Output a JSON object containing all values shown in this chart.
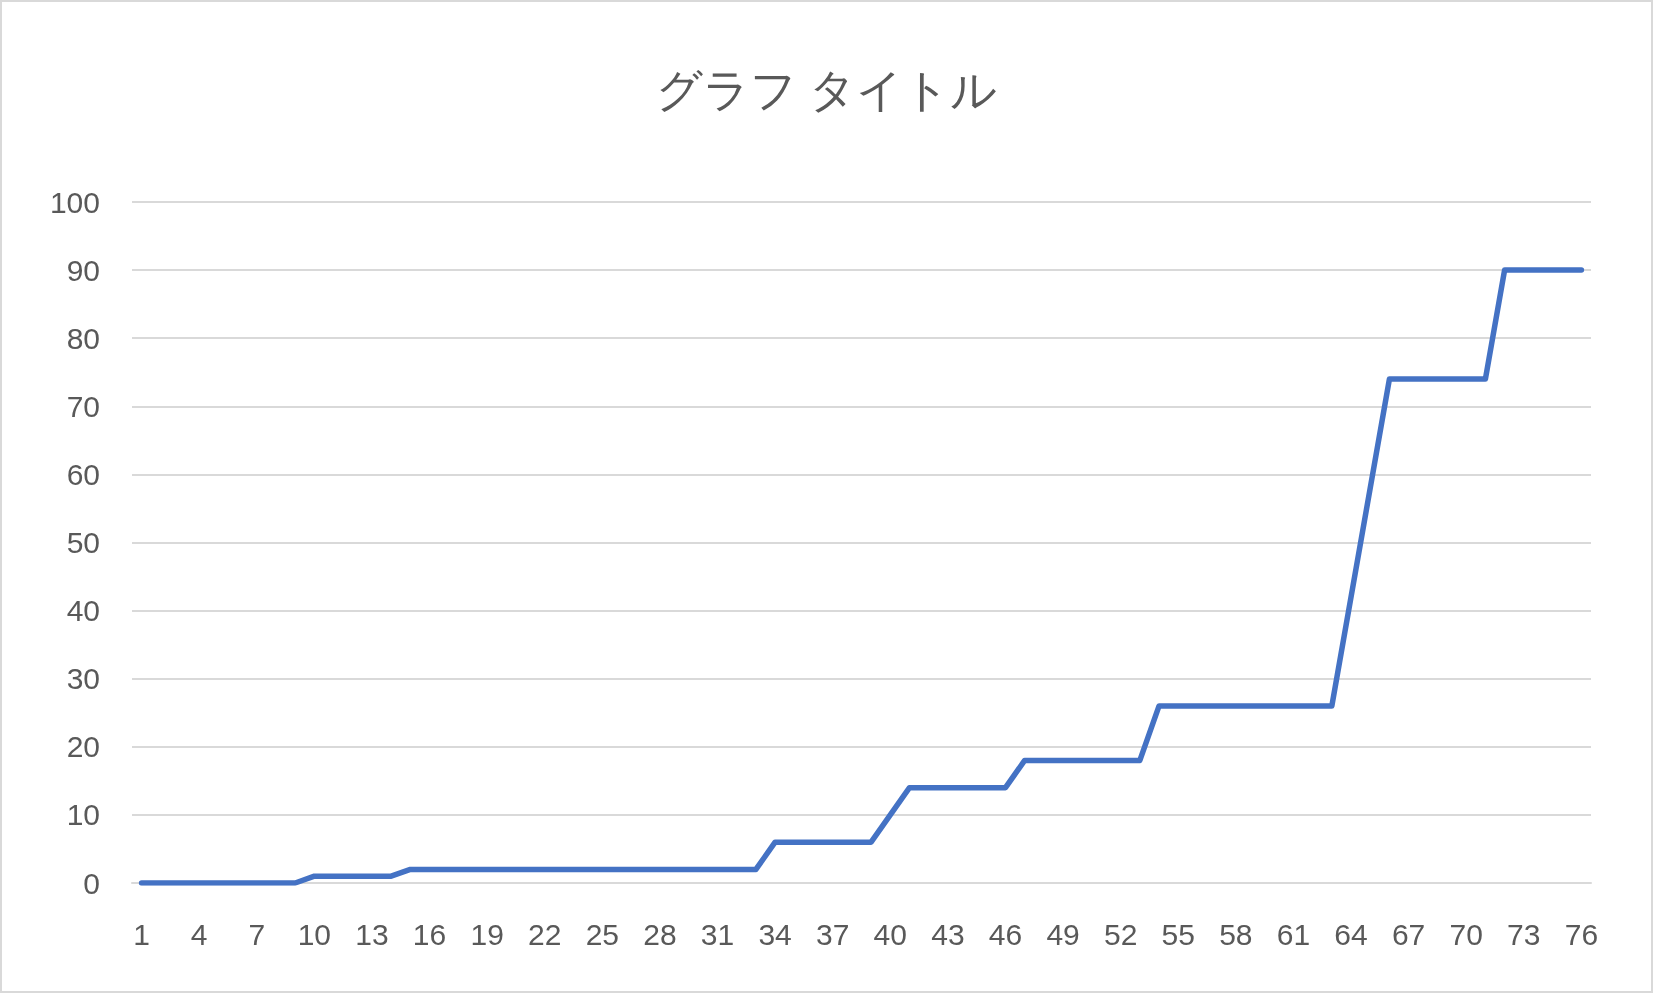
{
  "chart_data": {
    "type": "line",
    "title": "グラフ タイトル",
    "categories": [
      "1",
      null,
      null,
      "4",
      null,
      null,
      "7",
      null,
      null,
      "10",
      null,
      null,
      "13",
      null,
      null,
      "16",
      null,
      null,
      "19",
      null,
      null,
      "22",
      null,
      null,
      "25",
      null,
      null,
      "28",
      null,
      null,
      "31",
      null,
      null,
      "34",
      null,
      null,
      "37",
      null,
      null,
      "40",
      null,
      null,
      "43",
      null,
      null,
      "46",
      null,
      null,
      "49",
      null,
      null,
      "52",
      null,
      null,
      "55",
      null,
      null,
      "58",
      null,
      null,
      "61",
      null,
      null,
      "64",
      null,
      null,
      "67",
      null,
      null,
      "70",
      null,
      null,
      "73",
      null,
      null,
      "76"
    ],
    "series": [
      {
        "color": "#4472c4",
        "values": [
          0,
          0,
          0,
          0,
          0,
          0,
          0,
          0,
          0,
          1,
          1,
          1,
          1,
          1,
          2,
          2,
          2,
          2,
          2,
          2,
          2,
          2,
          2,
          2,
          2,
          2,
          2,
          2,
          2,
          2,
          2,
          2,
          2,
          6,
          6,
          6,
          6,
          6,
          6,
          10,
          14,
          14,
          14,
          14,
          14,
          14,
          18,
          18,
          18,
          18,
          18,
          18,
          18,
          26,
          26,
          26,
          26,
          26,
          26,
          26,
          26,
          26,
          26,
          42,
          58,
          74,
          74,
          74,
          74,
          74,
          74,
          90,
          90,
          90,
          90,
          90
        ]
      }
    ],
    "ylim": [
      0,
      100
    ],
    "yticks": [
      0,
      10,
      20,
      30,
      40,
      50,
      60,
      70,
      80,
      90,
      100
    ],
    "grid": "y",
    "marker": "none",
    "line_style": "solid"
  }
}
